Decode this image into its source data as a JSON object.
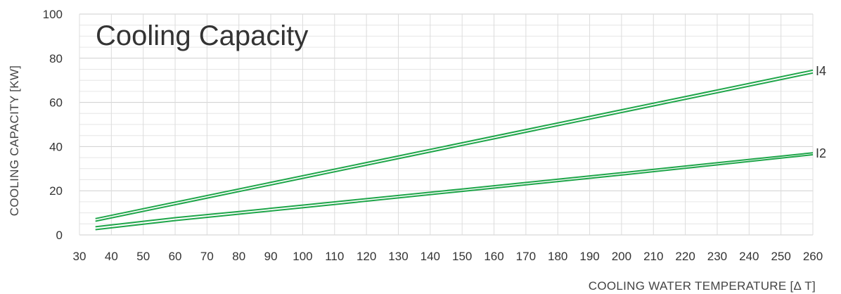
{
  "chart_data": {
    "type": "line",
    "title": "Cooling Capacity",
    "xlabel": "COOLING WATER TEMPERATURE [Δ T]",
    "ylabel": "COOLING CAPACITY [KW]",
    "xlim": [
      30,
      260
    ],
    "ylim": [
      0,
      100
    ],
    "x_ticks": [
      30,
      40,
      50,
      60,
      70,
      80,
      90,
      100,
      110,
      120,
      130,
      140,
      150,
      160,
      170,
      180,
      190,
      200,
      210,
      220,
      230,
      240,
      250,
      260
    ],
    "y_ticks": [
      0,
      20,
      40,
      60,
      80,
      100
    ],
    "grid": true,
    "line_color": "#1fa64a",
    "series": [
      {
        "name": "I4",
        "x": [
          35,
          260
        ],
        "lines": [
          {
            "y": [
              7.4,
              74.6
            ]
          },
          {
            "y": [
              6.2,
              73.3
            ]
          }
        ]
      },
      {
        "name": "I2",
        "x": [
          35,
          60,
          80,
          100,
          150,
          200,
          260
        ],
        "lines": [
          {
            "y": [
              3.7,
              7.8,
              10.6,
              13.5,
              20.8,
              28.2,
              37.2
            ]
          },
          {
            "y": [
              2.4,
              6.5,
              9.4,
              12.3,
              19.7,
              27.1,
              36.3
            ]
          }
        ]
      }
    ]
  }
}
